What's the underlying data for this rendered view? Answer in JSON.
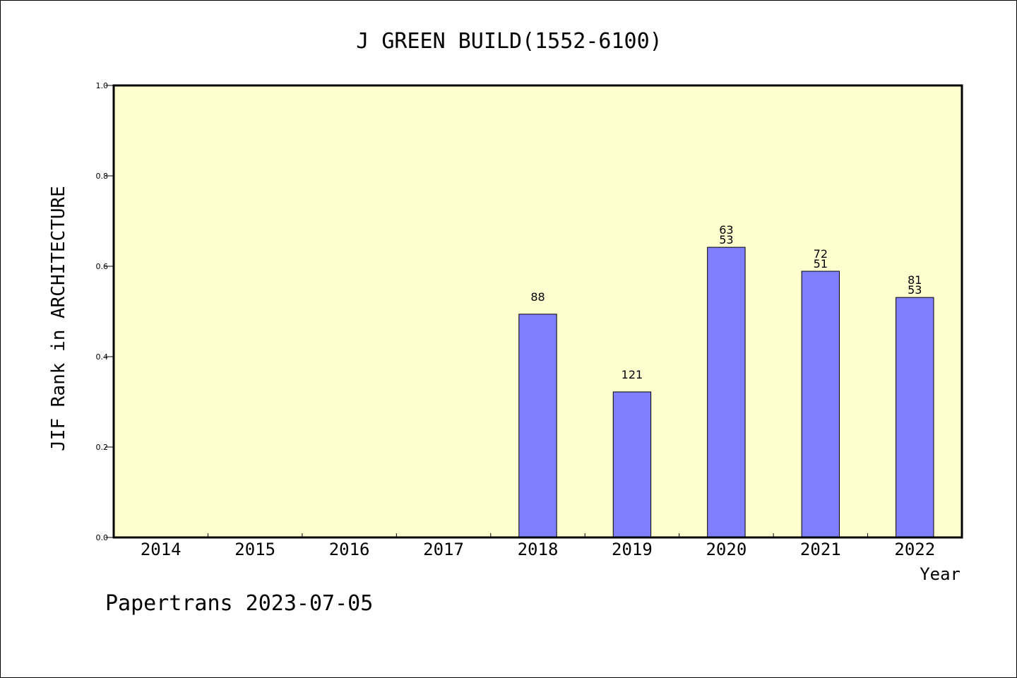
{
  "chart_data": {
    "type": "bar",
    "title": "J GREEN BUILD(1552-6100)",
    "xlabel": "Year",
    "ylabel": "JIF Rank in ARCHITECTURE",
    "ylim": [
      0,
      1.0
    ],
    "yticks": [
      "0.0",
      "0.2",
      "0.4",
      "0.6",
      "0.8",
      "1.0"
    ],
    "categories": [
      "2014",
      "2015",
      "2016",
      "2017",
      "2018",
      "2019",
      "2020",
      "2021",
      "2022"
    ],
    "values": [
      null,
      null,
      null,
      null,
      0.494,
      0.322,
      0.642,
      0.589,
      0.531
    ],
    "bar_labels": [
      [],
      [],
      [],
      [],
      [
        "88"
      ],
      [
        "121"
      ],
      [
        "63",
        "53"
      ],
      [
        "72",
        "51"
      ],
      [
        "81",
        "53"
      ]
    ],
    "grid": false,
    "colors": {
      "plot_background": "#ffffd0",
      "bar_fill": "#8080ff",
      "bar_stroke": "#000000"
    }
  },
  "footer": {
    "credit": "Papertrans 2023-07-05"
  }
}
